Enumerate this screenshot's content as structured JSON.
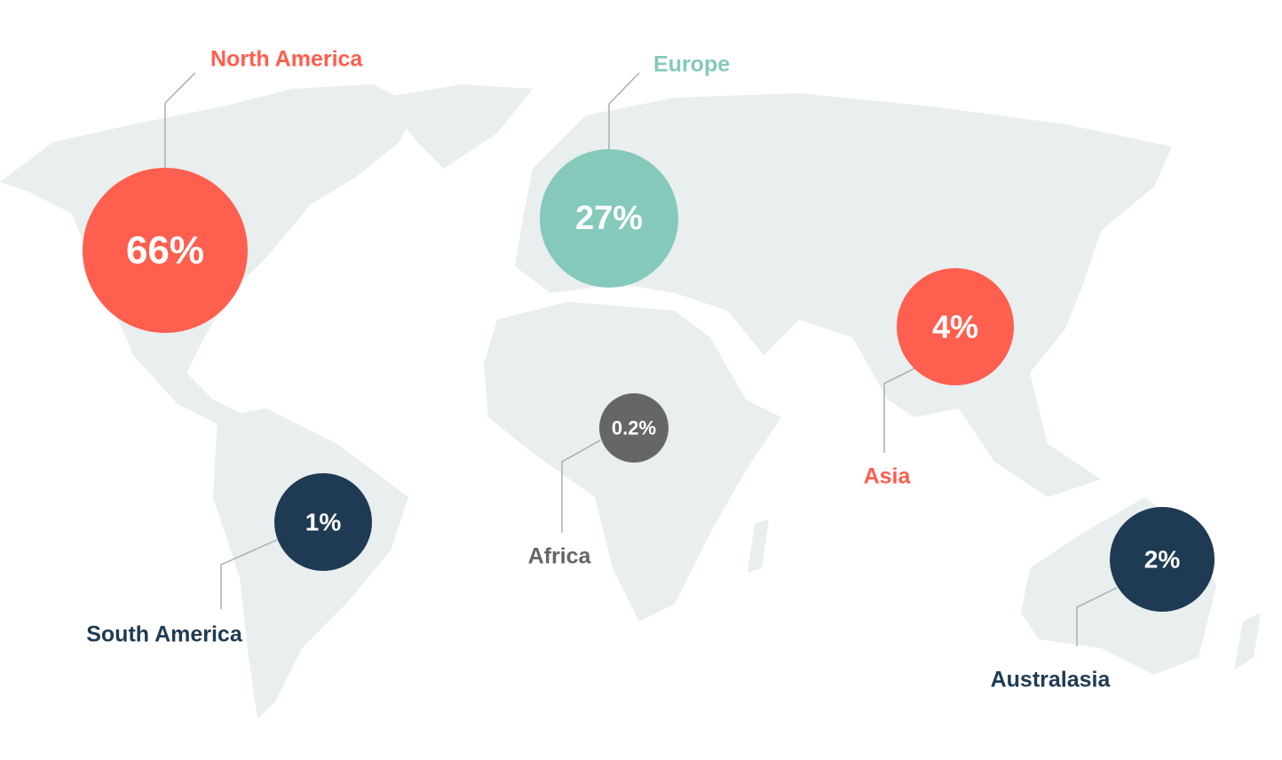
{
  "regions": [
    {
      "name": "North America",
      "value": "66%"
    },
    {
      "name": "Europe",
      "value": "27%"
    },
    {
      "name": "Asia",
      "value": "4%"
    },
    {
      "name": "Africa",
      "value": "0.2%"
    },
    {
      "name": "South America",
      "value": "1%"
    },
    {
      "name": "Australasia",
      "value": "2%"
    }
  ]
}
